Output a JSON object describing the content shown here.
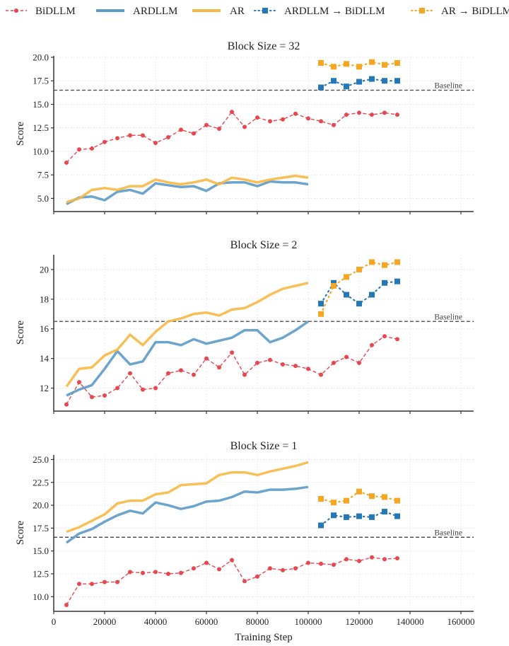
{
  "chart_data": {
    "type": "line",
    "legend": {
      "placement": "top",
      "entries": [
        {
          "key": "bidllm",
          "label": "BiDLLM"
        },
        {
          "key": "ardllm",
          "label": "ARDLLM"
        },
        {
          "key": "ar",
          "label": "AR"
        },
        {
          "key": "ardllm_to_bidllm",
          "label": "ARDLLM → BiDLLM"
        },
        {
          "key": "ar_to_bidllm",
          "label": "AR → BiDLLM"
        }
      ]
    },
    "series_styles": {
      "bidllm": {
        "color": "#e8474f",
        "line": "dashed",
        "marker": "circle"
      },
      "ardllm": {
        "color": "#5b9bc8",
        "line": "solid",
        "marker": "none"
      },
      "ar": {
        "color": "#f7b844",
        "line": "solid",
        "marker": "none"
      },
      "ardllm_to_bidllm": {
        "color": "#2678b4",
        "line": "dotted",
        "marker": "square"
      },
      "ar_to_bidllm": {
        "color": "#f5a623",
        "line": "dotted",
        "marker": "square"
      }
    },
    "baseline": {
      "value": 16.5,
      "label": "Baseline",
      "color": "#444444"
    },
    "xlabel": "Training Step",
    "xlim": [
      0,
      165000
    ],
    "xticks": [
      0,
      20000,
      40000,
      60000,
      80000,
      100000,
      120000,
      140000,
      160000
    ],
    "grid": true,
    "panels": [
      {
        "title": "Block Size = 32",
        "ylabel": "Score",
        "ylim": [
          3.6,
          20.15
        ],
        "yticks": [
          5.0,
          7.5,
          10.0,
          12.5,
          15.0,
          17.5,
          20.0
        ],
        "ytick_labels": [
          "5.0",
          "7.5",
          "10.0",
          "12.5",
          "15.0",
          "17.5",
          "20.0"
        ],
        "series": [
          {
            "key": "bidllm",
            "x": [
              5000,
              10000,
              15000,
              20000,
              25000,
              30000,
              35000,
              40000,
              45000,
              50000,
              55000,
              60000,
              65000,
              70000,
              75000,
              80000,
              85000,
              90000,
              95000,
              100000,
              105000,
              110000,
              115000,
              120000,
              125000,
              130000,
              135000
            ],
            "values": [
              8.8,
              10.2,
              10.3,
              11.0,
              11.4,
              11.7,
              11.7,
              10.9,
              11.5,
              12.3,
              11.9,
              12.8,
              12.4,
              14.2,
              12.6,
              13.6,
              13.2,
              13.4,
              14.0,
              13.5,
              13.2,
              12.8,
              13.9,
              14.1,
              13.9,
              14.1,
              13.9
            ]
          },
          {
            "key": "ardllm",
            "x": [
              5000,
              10000,
              15000,
              20000,
              25000,
              30000,
              35000,
              40000,
              45000,
              50000,
              55000,
              60000,
              65000,
              70000,
              75000,
              80000,
              85000,
              90000,
              95000,
              100000
            ],
            "values": [
              4.4,
              5.1,
              5.2,
              4.8,
              5.7,
              5.9,
              5.5,
              6.6,
              6.4,
              6.2,
              6.3,
              5.8,
              6.6,
              6.7,
              6.7,
              6.3,
              6.8,
              6.7,
              6.7,
              6.5
            ]
          },
          {
            "key": "ar",
            "x": [
              5000,
              10000,
              15000,
              20000,
              25000,
              30000,
              35000,
              40000,
              45000,
              50000,
              55000,
              60000,
              65000,
              70000,
              75000,
              80000,
              85000,
              90000,
              95000,
              100000
            ],
            "values": [
              4.6,
              5.0,
              5.9,
              6.1,
              5.9,
              6.3,
              6.3,
              7.0,
              6.7,
              6.5,
              6.7,
              7.0,
              6.5,
              7.2,
              7.0,
              6.7,
              7.0,
              7.2,
              7.4,
              7.2
            ]
          },
          {
            "key": "ardllm_to_bidllm",
            "x": [
              105000,
              110000,
              115000,
              120000,
              125000,
              130000,
              135000
            ],
            "values": [
              16.8,
              17.5,
              16.9,
              17.4,
              17.7,
              17.5,
              17.5
            ]
          },
          {
            "key": "ar_to_bidllm",
            "x": [
              105000,
              110000,
              115000,
              120000,
              125000,
              130000,
              135000
            ],
            "values": [
              19.4,
              19.0,
              19.3,
              19.0,
              19.5,
              19.2,
              19.4
            ]
          }
        ]
      },
      {
        "title": "Block Size = 2",
        "ylabel": "Score",
        "ylim": [
          10.45,
          21.0
        ],
        "yticks": [
          12,
          14,
          16,
          18,
          20
        ],
        "ytick_labels": [
          "12",
          "14",
          "16",
          "18",
          "20"
        ],
        "series": [
          {
            "key": "bidllm",
            "x": [
              5000,
              10000,
              15000,
              20000,
              25000,
              30000,
              35000,
              40000,
              45000,
              50000,
              55000,
              60000,
              65000,
              70000,
              75000,
              80000,
              85000,
              90000,
              95000,
              100000,
              105000,
              110000,
              115000,
              120000,
              125000,
              130000,
              135000
            ],
            "values": [
              10.9,
              12.4,
              11.4,
              11.5,
              12.0,
              13.0,
              11.9,
              12.0,
              13.0,
              13.2,
              12.9,
              14.0,
              13.4,
              14.4,
              12.9,
              13.7,
              13.9,
              13.6,
              13.5,
              13.3,
              12.9,
              13.7,
              14.1,
              13.7,
              14.9,
              15.5,
              15.3
            ]
          },
          {
            "key": "ardllm",
            "x": [
              5000,
              10000,
              15000,
              20000,
              25000,
              30000,
              35000,
              40000,
              45000,
              50000,
              55000,
              60000,
              65000,
              70000,
              75000,
              80000,
              85000,
              90000,
              95000,
              100000
            ],
            "values": [
              11.5,
              11.9,
              12.2,
              13.3,
              14.5,
              13.6,
              13.8,
              15.1,
              15.1,
              14.9,
              15.3,
              15.0,
              15.2,
              15.4,
              15.9,
              15.9,
              15.1,
              15.4,
              15.9,
              16.5
            ]
          },
          {
            "key": "ar",
            "x": [
              5000,
              10000,
              15000,
              20000,
              25000,
              30000,
              35000,
              40000,
              45000,
              50000,
              55000,
              60000,
              65000,
              70000,
              75000,
              80000,
              85000,
              90000,
              95000,
              100000
            ],
            "values": [
              12.1,
              13.3,
              13.4,
              14.2,
              14.6,
              15.6,
              14.9,
              15.8,
              16.5,
              16.7,
              17.0,
              17.1,
              16.9,
              17.3,
              17.4,
              17.8,
              18.3,
              18.7,
              18.9,
              19.1
            ]
          },
          {
            "key": "ardllm_to_bidllm",
            "x": [
              105000,
              110000,
              115000,
              120000,
              125000,
              130000,
              135000
            ],
            "values": [
              17.7,
              19.1,
              18.3,
              17.7,
              18.3,
              19.1,
              19.2
            ]
          },
          {
            "key": "ar_to_bidllm",
            "x": [
              105000,
              110000,
              115000,
              120000,
              125000,
              130000,
              135000
            ],
            "values": [
              17.0,
              18.9,
              19.5,
              20.0,
              20.5,
              20.3,
              20.5
            ]
          }
        ]
      },
      {
        "title": "Block Size = 1",
        "ylabel": "Score",
        "ylim": [
          8.4,
          25.5
        ],
        "yticks": [
          10.0,
          12.5,
          15.0,
          17.5,
          20.0,
          22.5,
          25.0
        ],
        "ytick_labels": [
          "10.0",
          "12.5",
          "15.0",
          "17.5",
          "20.0",
          "22.5",
          "25.0"
        ],
        "xtick_labels": [
          "0",
          "20000",
          "40000",
          "60000",
          "80000",
          "100000",
          "120000",
          "140000",
          "160000"
        ],
        "series": [
          {
            "key": "bidllm",
            "x": [
              5000,
              10000,
              15000,
              20000,
              25000,
              30000,
              35000,
              40000,
              45000,
              50000,
              55000,
              60000,
              65000,
              70000,
              75000,
              80000,
              85000,
              90000,
              95000,
              100000,
              105000,
              110000,
              115000,
              120000,
              125000,
              130000,
              135000
            ],
            "values": [
              9.1,
              11.4,
              11.4,
              11.6,
              11.6,
              12.7,
              12.6,
              12.7,
              12.5,
              12.6,
              13.1,
              13.7,
              13.0,
              14.0,
              11.7,
              12.2,
              13.1,
              12.9,
              13.1,
              13.7,
              13.6,
              13.5,
              14.1,
              13.9,
              14.3,
              14.1,
              14.2
            ]
          },
          {
            "key": "ardllm",
            "x": [
              5000,
              10000,
              15000,
              20000,
              25000,
              30000,
              35000,
              40000,
              45000,
              50000,
              55000,
              60000,
              65000,
              70000,
              75000,
              80000,
              85000,
              90000,
              95000,
              100000
            ],
            "values": [
              15.9,
              16.9,
              17.4,
              18.2,
              18.9,
              19.4,
              19.1,
              20.3,
              20.0,
              19.6,
              19.9,
              20.4,
              20.5,
              20.9,
              21.5,
              21.4,
              21.7,
              21.7,
              21.8,
              22.0
            ]
          },
          {
            "key": "ar",
            "x": [
              5000,
              10000,
              15000,
              20000,
              25000,
              30000,
              35000,
              40000,
              45000,
              50000,
              55000,
              60000,
              65000,
              70000,
              75000,
              80000,
              85000,
              90000,
              95000,
              100000
            ],
            "values": [
              17.1,
              17.6,
              18.3,
              19.0,
              20.2,
              20.5,
              20.5,
              21.2,
              21.4,
              22.2,
              22.3,
              22.4,
              23.3,
              23.6,
              23.6,
              23.3,
              23.7,
              24.0,
              24.3,
              24.7
            ]
          },
          {
            "key": "ardllm_to_bidllm",
            "x": [
              105000,
              110000,
              115000,
              120000,
              125000,
              130000,
              135000
            ],
            "values": [
              17.8,
              18.9,
              18.7,
              18.8,
              18.7,
              19.3,
              18.8
            ]
          },
          {
            "key": "ar_to_bidllm",
            "x": [
              105000,
              110000,
              115000,
              120000,
              125000,
              130000,
              135000
            ],
            "values": [
              20.7,
              20.3,
              20.5,
              21.5,
              21.0,
              20.9,
              20.5
            ]
          }
        ]
      }
    ]
  }
}
